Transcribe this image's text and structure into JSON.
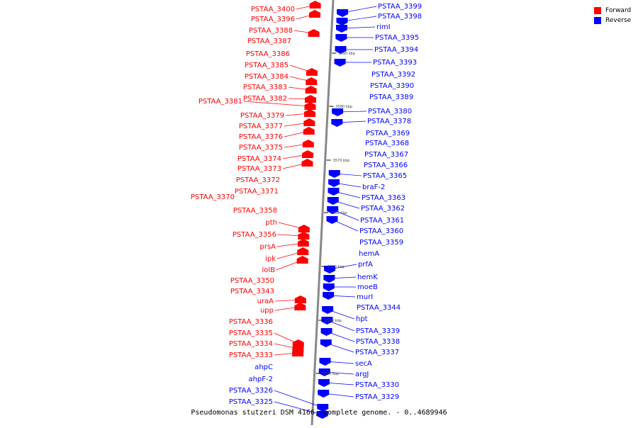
{
  "legend": [
    {
      "label": "Forward",
      "color": "#ff0000"
    },
    {
      "label": "Reverse",
      "color": "#0000ff"
    }
  ],
  "caption": "Pseudomonas stutzeri DSM 4166, complete genome. - 0..4689946",
  "colors": {
    "forward": "#ff0000",
    "reverse": "#0000ff",
    "backbone": "#888888"
  },
  "ticks": [
    "3590 kbp",
    "3580 kbp",
    "3570 kbp",
    "3560 kbp",
    "3550 kbp",
    "3540 kbp",
    "3530 kbp"
  ],
  "forward_genes": [
    "PSTAA_3400",
    "PSTAA_3396",
    "PSTAA_3388",
    "PSTAA_3387",
    "PSTAA_3386",
    "PSTAA_3385",
    "PSTAA_3384",
    "PSTAA_3383",
    "PSTAA_3382",
    "PSTAA_3381",
    "PSTAA_3379",
    "PSTAA_3377",
    "PSTAA_3376",
    "PSTAA_3375",
    "PSTAA_3374",
    "PSTAA_3373",
    "PSTAA_3372",
    "PSTAA_3371",
    "PSTAA_3370",
    "PSTAA_3358",
    "pth",
    "PSTAA_3356",
    "prsA",
    "ipk",
    "lolB",
    "PSTAA_3350",
    "PSTAA_3343",
    "uraA",
    "upp",
    "PSTAA_3336",
    "PSTAA_3335",
    "PSTAA_3334",
    "PSTAA_3333"
  ],
  "reverse_genes": [
    "PSTAA_3399",
    "PSTAA_3398",
    "rimI",
    "PSTAA_3395",
    "PSTAA_3394",
    "PSTAA_3393",
    "PSTAA_3392",
    "PSTAA_3390",
    "PSTAA_3389",
    "PSTAA_3380",
    "PSTAA_3378",
    "PSTAA_3369",
    "PSTAA_3368",
    "PSTAA_3367",
    "PSTAA_3366",
    "PSTAA_3365",
    "braF-2",
    "PSTAA_3363",
    "PSTAA_3362",
    "PSTAA_3361",
    "PSTAA_3360",
    "PSTAA_3359",
    "hemA",
    "prfA",
    "hemK",
    "moeB",
    "murI",
    "PSTAA_3344",
    "hpt",
    "PSTAA_3339",
    "PSTAA_3338",
    "PSTAA_3337",
    "secA",
    "argJ",
    "PSTAA_3330",
    "PSTAA_3329",
    "ahpC",
    "ahpF-2",
    "PSTAA_3326",
    "PSTAA_3325"
  ]
}
